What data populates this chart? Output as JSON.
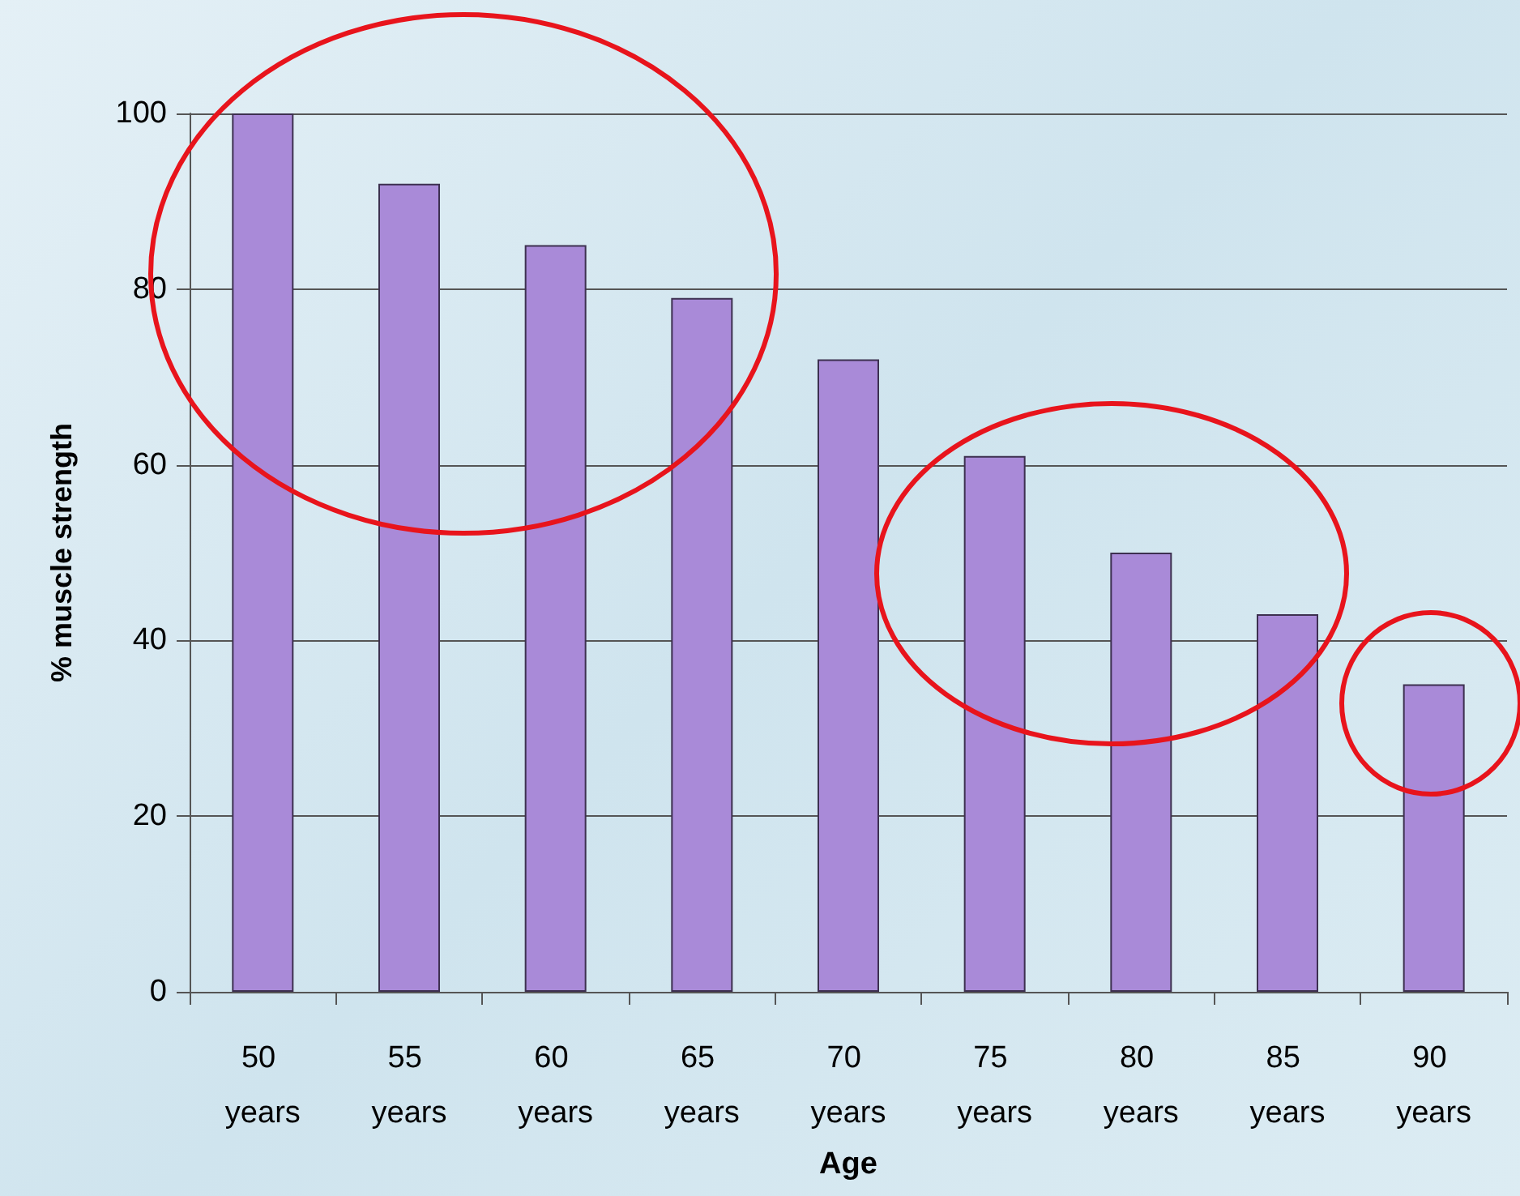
{
  "chart_data": {
    "type": "bar",
    "xlabel": "Age",
    "ylabel": "% muscle strength",
    "categories": [
      "50 years",
      "55 years",
      "60 years",
      "65 years",
      "70 years",
      "75 years",
      "80 years",
      "85 years",
      "90 years"
    ],
    "values": [
      100,
      92,
      85,
      79,
      72,
      61,
      50,
      43,
      35
    ],
    "color": "#a98ad8",
    "ylim": [
      0,
      100
    ],
    "yticks": [
      0,
      20,
      40,
      60,
      80,
      100
    ],
    "grid": "y"
  }
}
